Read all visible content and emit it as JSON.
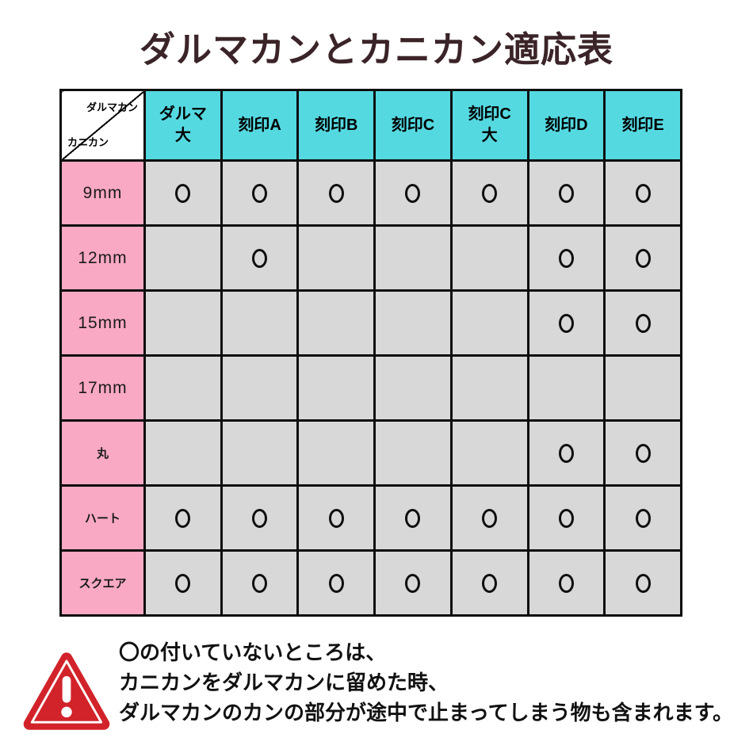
{
  "title": "ダルマカンとカニカン適応表",
  "table": {
    "corner": {
      "top_right": "ダルマカン",
      "bottom_left": "カニカン"
    },
    "columns": [
      {
        "label": "ダルマ大",
        "lines": [
          "ダルマ",
          "大"
        ]
      },
      {
        "label": "刻印A",
        "lines": [
          "刻印A"
        ]
      },
      {
        "label": "刻印B",
        "lines": [
          "刻印B"
        ]
      },
      {
        "label": "刻印C",
        "lines": [
          "刻印C"
        ]
      },
      {
        "label": "刻印C大",
        "lines": [
          "刻印C",
          "大"
        ]
      },
      {
        "label": "刻印D",
        "lines": [
          "刻印D"
        ]
      },
      {
        "label": "刻印E",
        "lines": [
          "刻印E"
        ]
      }
    ],
    "rows": [
      {
        "label": "9mm",
        "marks": [
          1,
          1,
          1,
          1,
          1,
          1,
          1
        ]
      },
      {
        "label": "12mm",
        "marks": [
          0,
          1,
          0,
          0,
          0,
          1,
          1
        ]
      },
      {
        "label": "15mm",
        "marks": [
          0,
          0,
          0,
          0,
          0,
          1,
          1
        ]
      },
      {
        "label": "17mm",
        "marks": [
          0,
          0,
          0,
          0,
          0,
          0,
          0
        ]
      },
      {
        "label": "丸",
        "marks": [
          0,
          0,
          0,
          0,
          0,
          1,
          1
        ]
      },
      {
        "label": "ハート",
        "marks": [
          1,
          1,
          1,
          1,
          1,
          1,
          1
        ]
      },
      {
        "label": "スクエア",
        "marks": [
          1,
          1,
          1,
          1,
          1,
          1,
          1
        ]
      }
    ],
    "mark_symbol": "〇"
  },
  "note": {
    "lines": [
      "〇の付いていないところは、",
      "カニカンをダルマカンに留めた時、",
      "ダルマカンのカンの部分が途中で止まってしまう物も含まれます。"
    ]
  },
  "colors": {
    "header_bg": "#55d9e1",
    "row_header_bg": "#f9a9c4",
    "cell_bg": "#d8d8d8",
    "border": "#0d0d0d",
    "title_color": "#3b2428",
    "warning_red": "#d2232a",
    "note_color": "#111111"
  },
  "chart_data": {
    "type": "table",
    "title": "ダルマカンとカニカン適応表",
    "column_axis_label": "ダルマカン",
    "row_axis_label": "カニカン",
    "columns": [
      "ダルマ大",
      "刻印A",
      "刻印B",
      "刻印C",
      "刻印C大",
      "刻印D",
      "刻印E"
    ],
    "rows": [
      "9mm",
      "12mm",
      "15mm",
      "17mm",
      "丸",
      "ハート",
      "スクエア"
    ],
    "compatible": [
      [
        1,
        1,
        1,
        1,
        1,
        1,
        1
      ],
      [
        0,
        1,
        0,
        0,
        0,
        1,
        1
      ],
      [
        0,
        0,
        0,
        0,
        0,
        1,
        1
      ],
      [
        0,
        0,
        0,
        0,
        0,
        0,
        0
      ],
      [
        0,
        0,
        0,
        0,
        0,
        1,
        1
      ],
      [
        1,
        1,
        1,
        1,
        1,
        1,
        1
      ],
      [
        1,
        1,
        1,
        1,
        1,
        1,
        1
      ]
    ],
    "mark": "〇",
    "note": "〇の付いていないところは、カニカンをダルマカンに留めた時、ダルマカンのカンの部分が途中で止まってしまう物も含まれます。"
  }
}
